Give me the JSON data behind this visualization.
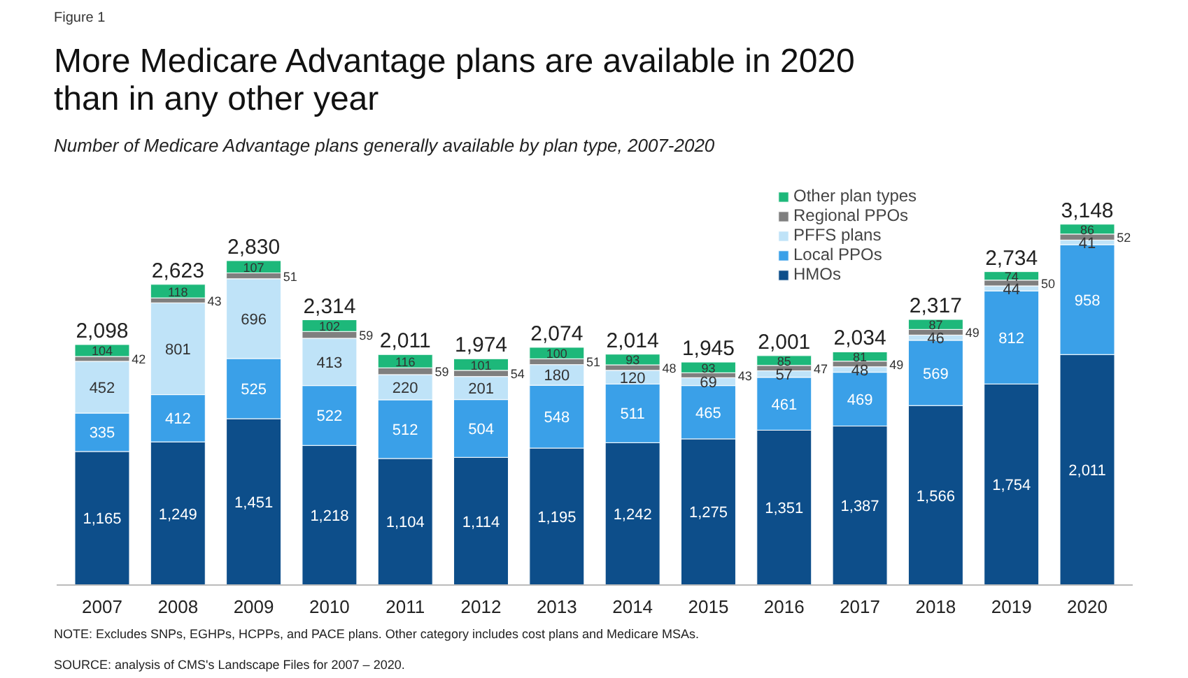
{
  "chart_data": {
    "type": "bar",
    "stacked": true,
    "title": "More Medicare Advantage plans are available in 2020 than in any other year",
    "subtitle": "Number of Medicare Advantage plans generally available by plan type, 2007-2020",
    "annotations": [
      "Figure 1",
      "NOTE: Excludes SNPs, EGHPs, HCPPs, and PACE plans. Other category includes cost plans and Medicare MSAs.",
      "SOURCE: analysis of CMS's Landscape Files for 2007 – 2020."
    ],
    "categories": [
      "2007",
      "2008",
      "2009",
      "2010",
      "2011",
      "2012",
      "2013",
      "2014",
      "2015",
      "2016",
      "2017",
      "2018",
      "2019",
      "2020"
    ],
    "series": [
      {
        "name": "HMOs",
        "color": "#0d4e8a",
        "values": [
          1165,
          1249,
          1451,
          1218,
          1104,
          1114,
          1195,
          1242,
          1275,
          1351,
          1387,
          1566,
          1754,
          2011
        ],
        "value_labels": [
          "1,165",
          "1,249",
          "1,451",
          "1,218",
          "1,104",
          "1,114",
          "1,195",
          "1,242",
          "1,275",
          "1,351",
          "1,387",
          "1,566",
          "1,754",
          "2,011"
        ]
      },
      {
        "name": "Local PPOs",
        "color": "#3aa0e8",
        "values": [
          335,
          412,
          525,
          522,
          512,
          504,
          548,
          511,
          465,
          461,
          469,
          569,
          812,
          958
        ]
      },
      {
        "name": "PFFS plans",
        "color": "#bfe3f8",
        "values": [
          452,
          801,
          696,
          413,
          220,
          201,
          180,
          120,
          69,
          57,
          48,
          46,
          44,
          41
        ]
      },
      {
        "name": "Regional PPOs",
        "color": "#7f7f7f",
        "values": [
          42,
          43,
          51,
          59,
          59,
          54,
          51,
          48,
          43,
          47,
          49,
          49,
          50,
          52
        ]
      },
      {
        "name": "Other plan types",
        "color": "#1db87a",
        "values": [
          104,
          118,
          107,
          102,
          116,
          101,
          100,
          93,
          93,
          85,
          81,
          87,
          74,
          86
        ]
      }
    ],
    "data_labels": true,
    "totals": [
      "2,098",
      "2,623",
      "2,830",
      "2,314",
      "2,011",
      "1,974",
      "2,074",
      "2,014",
      "1,945",
      "2,001",
      "2,034",
      "2,317",
      "2,734",
      "3,148"
    ],
    "legend": "top right",
    "grid": false
  }
}
